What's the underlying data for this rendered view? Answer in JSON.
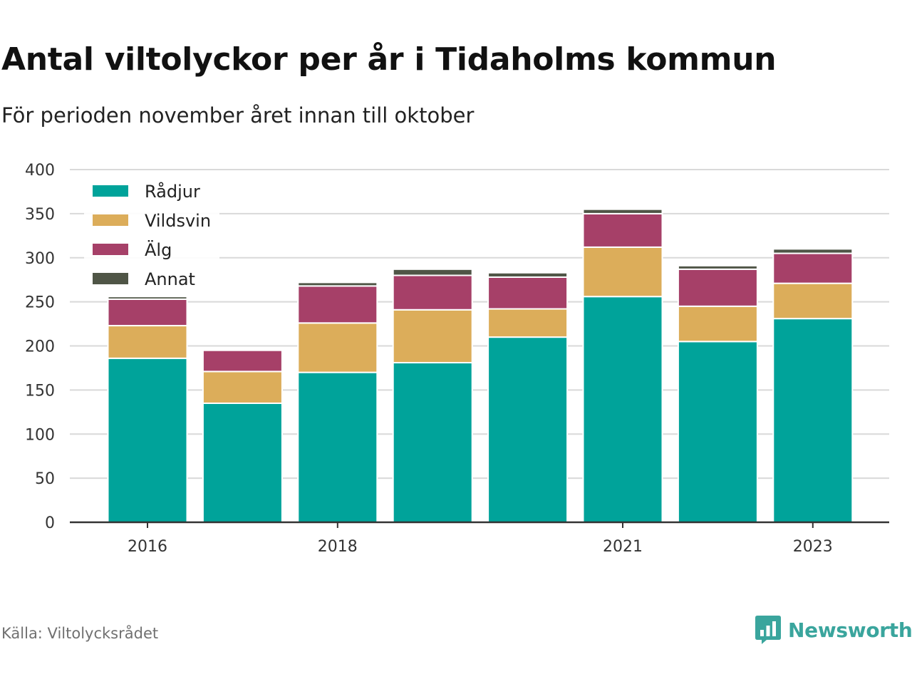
{
  "header": {
    "title": "Antal viltolyckor per år i Tidaholms kommun",
    "subtitle": "För perioden november året innan till oktober"
  },
  "footer": {
    "source": "Källa: Viltolycksrådet",
    "brand": "Newsworthy",
    "brand_icon": "bar-chart-speech-bubble-icon"
  },
  "colors": {
    "Rådjur": "#00a39a",
    "Vildsvin": "#dcad5a",
    "Älg": "#a64068",
    "Annat": "#4f5546",
    "grid": "#d9d9d9",
    "axis": "#333333",
    "brand": "#3aa59d"
  },
  "chart_data": {
    "type": "bar",
    "stacked": true,
    "categories": [
      "2016",
      "2017",
      "2018",
      "2019",
      "2020",
      "2021",
      "2022",
      "2023"
    ],
    "x_tick_labels": [
      "2016",
      "",
      "2018",
      "",
      "",
      "2021",
      "",
      "2023"
    ],
    "y_ticks": [
      0,
      50,
      100,
      150,
      200,
      250,
      300,
      350,
      400
    ],
    "ylim": [
      0,
      400
    ],
    "grid": true,
    "legend_position": "top-left",
    "series": [
      {
        "name": "Rådjur",
        "values": [
          186,
          135,
          170,
          181,
          210,
          256,
          205,
          231
        ]
      },
      {
        "name": "Vildsvin",
        "values": [
          37,
          36,
          56,
          60,
          32,
          56,
          40,
          40
        ]
      },
      {
        "name": "Älg",
        "values": [
          30,
          24,
          42,
          39,
          36,
          38,
          42,
          34
        ]
      },
      {
        "name": "Annat",
        "values": [
          3,
          0,
          4,
          7,
          5,
          5,
          4,
          5
        ]
      }
    ]
  }
}
